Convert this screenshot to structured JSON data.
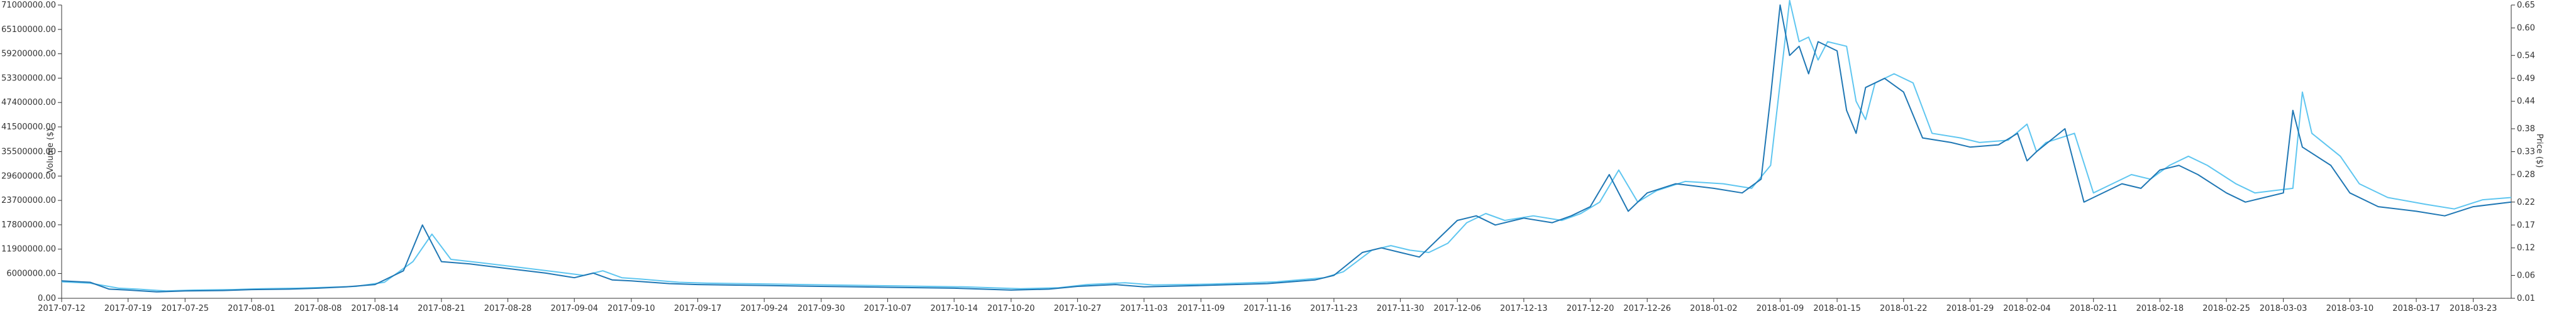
{
  "chart_data": {
    "type": "line",
    "title": "",
    "xlabel": "",
    "ylabel_left": "Volume ($)",
    "ylabel_right": "Price ($)",
    "grid": false,
    "legend": "none",
    "x_start": "2017-07-12",
    "x_end": "2018-03-27",
    "x_ticks": [
      "2017-07-12",
      "2017-07-19",
      "2017-07-25",
      "2017-08-01",
      "2017-08-08",
      "2017-08-14",
      "2017-08-21",
      "2017-08-28",
      "2017-09-04",
      "2017-09-10",
      "2017-09-17",
      "2017-09-24",
      "2017-09-30",
      "2017-10-07",
      "2017-10-14",
      "2017-10-20",
      "2017-10-27",
      "2017-11-03",
      "2017-11-09",
      "2017-11-16",
      "2017-11-23",
      "2017-11-30",
      "2017-12-06",
      "2017-12-13",
      "2017-12-20",
      "2017-12-26",
      "2018-01-02",
      "2018-01-09",
      "2018-01-15",
      "2018-01-22",
      "2018-01-29",
      "2018-02-04",
      "2018-02-11",
      "2018-02-18",
      "2018-02-25",
      "2018-03-03",
      "2018-03-10",
      "2018-03-17",
      "2018-03-23"
    ],
    "y_left": {
      "ylim": [
        0,
        71000000
      ],
      "ticks": [
        "0.00",
        "6000000.00",
        "11900000.00",
        "17800000.00",
        "23700000.00",
        "29600000.00",
        "35500000.00",
        "41500000.00",
        "47400000.00",
        "53300000.00",
        "59200000.00",
        "65100000.00",
        "71000000.00"
      ],
      "tick_values": [
        0,
        6000000,
        11900000,
        17800000,
        23700000,
        29600000,
        35500000,
        41500000,
        47400000,
        53300000,
        59200000,
        65100000,
        71000000
      ]
    },
    "y_right": {
      "ylim": [
        0.01,
        0.65
      ],
      "ticks": [
        "0.01",
        "0.06",
        "0.12",
        "0.17",
        "0.22",
        "0.28",
        "0.33",
        "0.38",
        "0.44",
        "0.49",
        "0.54",
        "0.60",
        "0.65"
      ],
      "tick_values": [
        0.01,
        0.06,
        0.12,
        0.17,
        0.22,
        0.28,
        0.33,
        0.38,
        0.44,
        0.49,
        0.54,
        0.6,
        0.65
      ]
    },
    "colors": {
      "price": "#1f77b4",
      "volume": "#5fc6f0"
    },
    "series": [
      {
        "axis": "right",
        "color_key": "price",
        "points": [
          [
            "2017-07-12",
            0.048
          ],
          [
            "2017-07-15",
            0.045
          ],
          [
            "2017-07-17",
            0.03
          ],
          [
            "2017-07-19",
            0.028
          ],
          [
            "2017-07-22",
            0.024
          ],
          [
            "2017-07-25",
            0.026
          ],
          [
            "2017-07-29",
            0.027
          ],
          [
            "2017-08-01",
            0.029
          ],
          [
            "2017-08-05",
            0.03
          ],
          [
            "2017-08-08",
            0.032
          ],
          [
            "2017-08-11",
            0.035
          ],
          [
            "2017-08-14",
            0.04
          ],
          [
            "2017-08-17",
            0.07
          ],
          [
            "2017-08-19",
            0.17
          ],
          [
            "2017-08-21",
            0.09
          ],
          [
            "2017-08-24",
            0.085
          ],
          [
            "2017-08-28",
            0.075
          ],
          [
            "2017-09-01",
            0.065
          ],
          [
            "2017-09-04",
            0.055
          ],
          [
            "2017-09-06",
            0.065
          ],
          [
            "2017-09-08",
            0.05
          ],
          [
            "2017-09-10",
            0.048
          ],
          [
            "2017-09-14",
            0.042
          ],
          [
            "2017-09-17",
            0.04
          ],
          [
            "2017-09-24",
            0.038
          ],
          [
            "2017-09-30",
            0.036
          ],
          [
            "2017-10-07",
            0.034
          ],
          [
            "2017-10-14",
            0.032
          ],
          [
            "2017-10-20",
            0.028
          ],
          [
            "2017-10-24",
            0.03
          ],
          [
            "2017-10-27",
            0.036
          ],
          [
            "2017-10-31",
            0.04
          ],
          [
            "2017-11-03",
            0.035
          ],
          [
            "2017-11-09",
            0.038
          ],
          [
            "2017-11-16",
            0.042
          ],
          [
            "2017-11-21",
            0.05
          ],
          [
            "2017-11-23",
            0.06
          ],
          [
            "2017-11-26",
            0.11
          ],
          [
            "2017-11-28",
            0.12
          ],
          [
            "2017-11-30",
            0.11
          ],
          [
            "2017-12-02",
            0.1
          ],
          [
            "2017-12-04",
            0.14
          ],
          [
            "2017-12-06",
            0.18
          ],
          [
            "2017-12-08",
            0.19
          ],
          [
            "2017-12-10",
            0.17
          ],
          [
            "2017-12-13",
            0.185
          ],
          [
            "2017-12-16",
            0.175
          ],
          [
            "2017-12-18",
            0.19
          ],
          [
            "2017-12-20",
            0.21
          ],
          [
            "2017-12-22",
            0.28
          ],
          [
            "2017-12-24",
            0.2
          ],
          [
            "2017-12-26",
            0.24
          ],
          [
            "2017-12-29",
            0.26
          ],
          [
            "2018-01-02",
            0.25
          ],
          [
            "2018-01-05",
            0.24
          ],
          [
            "2018-01-07",
            0.27
          ],
          [
            "2018-01-08",
            0.45
          ],
          [
            "2018-01-09",
            0.65
          ],
          [
            "2018-01-10",
            0.54
          ],
          [
            "2018-01-11",
            0.56
          ],
          [
            "2018-01-12",
            0.5
          ],
          [
            "2018-01-13",
            0.57
          ],
          [
            "2018-01-15",
            0.55
          ],
          [
            "2018-01-16",
            0.42
          ],
          [
            "2018-01-17",
            0.37
          ],
          [
            "2018-01-18",
            0.47
          ],
          [
            "2018-01-20",
            0.49
          ],
          [
            "2018-01-22",
            0.46
          ],
          [
            "2018-01-24",
            0.36
          ],
          [
            "2018-01-27",
            0.35
          ],
          [
            "2018-01-29",
            0.34
          ],
          [
            "2018-02-01",
            0.345
          ],
          [
            "2018-02-03",
            0.37
          ],
          [
            "2018-02-04",
            0.31
          ],
          [
            "2018-02-05",
            0.33
          ],
          [
            "2018-02-08",
            0.38
          ],
          [
            "2018-02-10",
            0.22
          ],
          [
            "2018-02-11",
            0.23
          ],
          [
            "2018-02-14",
            0.26
          ],
          [
            "2018-02-16",
            0.25
          ],
          [
            "2018-02-18",
            0.29
          ],
          [
            "2018-02-20",
            0.3
          ],
          [
            "2018-02-22",
            0.28
          ],
          [
            "2018-02-25",
            0.24
          ],
          [
            "2018-02-27",
            0.22
          ],
          [
            "2018-03-01",
            0.23
          ],
          [
            "2018-03-03",
            0.24
          ],
          [
            "2018-03-04",
            0.42
          ],
          [
            "2018-03-05",
            0.34
          ],
          [
            "2018-03-08",
            0.3
          ],
          [
            "2018-03-10",
            0.24
          ],
          [
            "2018-03-13",
            0.21
          ],
          [
            "2018-03-17",
            0.2
          ],
          [
            "2018-03-20",
            0.19
          ],
          [
            "2018-03-23",
            0.21
          ],
          [
            "2018-03-27",
            0.22
          ]
        ]
      },
      {
        "axis": "right",
        "color_key": "volume",
        "points": [
          [
            "2017-07-12",
            0.046
          ],
          [
            "2017-07-15",
            0.043
          ],
          [
            "2017-07-18",
            0.032
          ],
          [
            "2017-07-20",
            0.03
          ],
          [
            "2017-07-23",
            0.026
          ],
          [
            "2017-07-26",
            0.028
          ],
          [
            "2017-07-30",
            0.029
          ],
          [
            "2017-08-02",
            0.031
          ],
          [
            "2017-08-06",
            0.032
          ],
          [
            "2017-08-09",
            0.034
          ],
          [
            "2017-08-12",
            0.036
          ],
          [
            "2017-08-15",
            0.045
          ],
          [
            "2017-08-18",
            0.09
          ],
          [
            "2017-08-20",
            0.15
          ],
          [
            "2017-08-22",
            0.095
          ],
          [
            "2017-08-25",
            0.088
          ],
          [
            "2017-08-29",
            0.078
          ],
          [
            "2017-09-02",
            0.068
          ],
          [
            "2017-09-05",
            0.06
          ],
          [
            "2017-09-07",
            0.07
          ],
          [
            "2017-09-09",
            0.055
          ],
          [
            "2017-09-11",
            0.052
          ],
          [
            "2017-09-15",
            0.045
          ],
          [
            "2017-09-18",
            0.043
          ],
          [
            "2017-09-25",
            0.041
          ],
          [
            "2017-10-01",
            0.039
          ],
          [
            "2017-10-08",
            0.037
          ],
          [
            "2017-10-15",
            0.035
          ],
          [
            "2017-10-21",
            0.031
          ],
          [
            "2017-10-25",
            0.033
          ],
          [
            "2017-10-28",
            0.04
          ],
          [
            "2017-11-01",
            0.044
          ],
          [
            "2017-11-04",
            0.039
          ],
          [
            "2017-11-10",
            0.041
          ],
          [
            "2017-11-17",
            0.046
          ],
          [
            "2017-11-22",
            0.055
          ],
          [
            "2017-11-24",
            0.068
          ],
          [
            "2017-11-27",
            0.115
          ],
          [
            "2017-11-29",
            0.125
          ],
          [
            "2017-12-01",
            0.115
          ],
          [
            "2017-12-03",
            0.11
          ],
          [
            "2017-12-05",
            0.13
          ],
          [
            "2017-12-07",
            0.175
          ],
          [
            "2017-12-09",
            0.195
          ],
          [
            "2017-12-11",
            0.18
          ],
          [
            "2017-12-14",
            0.19
          ],
          [
            "2017-12-17",
            0.18
          ],
          [
            "2017-12-19",
            0.195
          ],
          [
            "2017-12-21",
            0.22
          ],
          [
            "2017-12-23",
            0.29
          ],
          [
            "2017-12-25",
            0.22
          ],
          [
            "2017-12-27",
            0.245
          ],
          [
            "2017-12-30",
            0.265
          ],
          [
            "2018-01-03",
            0.26
          ],
          [
            "2018-01-06",
            0.25
          ],
          [
            "2018-01-08",
            0.3
          ],
          [
            "2018-01-09",
            0.48
          ],
          [
            "2018-01-10",
            0.66
          ],
          [
            "2018-01-11",
            0.57
          ],
          [
            "2018-01-12",
            0.58
          ],
          [
            "2018-01-13",
            0.53
          ],
          [
            "2018-01-14",
            0.57
          ],
          [
            "2018-01-16",
            0.56
          ],
          [
            "2018-01-17",
            0.44
          ],
          [
            "2018-01-18",
            0.4
          ],
          [
            "2018-01-19",
            0.48
          ],
          [
            "2018-01-21",
            0.5
          ],
          [
            "2018-01-23",
            0.48
          ],
          [
            "2018-01-25",
            0.37
          ],
          [
            "2018-01-28",
            0.36
          ],
          [
            "2018-01-30",
            0.35
          ],
          [
            "2018-02-02",
            0.355
          ],
          [
            "2018-02-04",
            0.39
          ],
          [
            "2018-02-05",
            0.33
          ],
          [
            "2018-02-06",
            0.35
          ],
          [
            "2018-02-09",
            0.37
          ],
          [
            "2018-02-11",
            0.24
          ],
          [
            "2018-02-12",
            0.25
          ],
          [
            "2018-02-15",
            0.28
          ],
          [
            "2018-02-17",
            0.27
          ],
          [
            "2018-02-19",
            0.3
          ],
          [
            "2018-02-21",
            0.32
          ],
          [
            "2018-02-23",
            0.3
          ],
          [
            "2018-02-26",
            0.26
          ],
          [
            "2018-02-28",
            0.24
          ],
          [
            "2018-03-02",
            0.245
          ],
          [
            "2018-03-04",
            0.25
          ],
          [
            "2018-03-05",
            0.46
          ],
          [
            "2018-03-06",
            0.37
          ],
          [
            "2018-03-09",
            0.32
          ],
          [
            "2018-03-11",
            0.26
          ],
          [
            "2018-03-14",
            0.23
          ],
          [
            "2018-03-18",
            0.215
          ],
          [
            "2018-03-21",
            0.205
          ],
          [
            "2018-03-24",
            0.225
          ],
          [
            "2018-03-27",
            0.23
          ]
        ]
      }
    ]
  }
}
